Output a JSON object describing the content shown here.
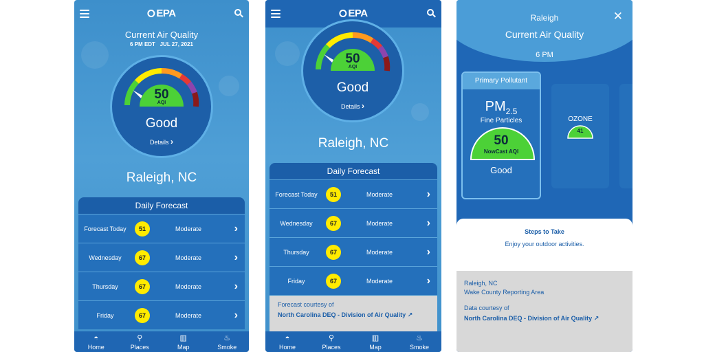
{
  "colors": {
    "primary": "#1f66b3",
    "good": "#4cd137",
    "moderate": "#ffeb00"
  },
  "nav": [
    {
      "label": "Home",
      "icon": "home-icon",
      "glyph": "◓"
    },
    {
      "label": "Places",
      "icon": "pin-icon",
      "glyph": "⚲"
    },
    {
      "label": "Map",
      "icon": "map-icon",
      "glyph": "▥"
    },
    {
      "label": "Smoke",
      "icon": "smoke-icon",
      "glyph": "♨"
    }
  ],
  "brand": "EPA",
  "screen1": {
    "header": "Current Air Quality",
    "timestamp": "6 PM EDT   JUL 27, 2021",
    "aqi": "50",
    "aqi_label": "AQI",
    "category": "Good",
    "details": "Details",
    "location": "Raleigh, NC",
    "forecast_title": "Daily Forecast",
    "forecast": [
      {
        "day": "Forecast Today",
        "aqi": "51",
        "category": "Moderate"
      },
      {
        "day": "Wednesday",
        "aqi": "67",
        "category": "Moderate"
      },
      {
        "day": "Thursday",
        "aqi": "67",
        "category": "Moderate"
      },
      {
        "day": "Friday",
        "aqi": "67",
        "category": "Moderate"
      }
    ]
  },
  "screen2": {
    "aqi": "50",
    "aqi_label": "AQI",
    "category": "Good",
    "details": "Details",
    "location": "Raleigh, NC",
    "forecast_title": "Daily Forecast",
    "forecast": [
      {
        "day": "Forecast Today",
        "aqi": "51",
        "category": "Moderate"
      },
      {
        "day": "Wednesday",
        "aqi": "67",
        "category": "Moderate"
      },
      {
        "day": "Thursday",
        "aqi": "67",
        "category": "Moderate"
      },
      {
        "day": "Friday",
        "aqi": "67",
        "category": "Moderate"
      }
    ],
    "courtesy_label": "Forecast courtesy of",
    "courtesy_source": "North Carolina DEQ - Division of Air Quality"
  },
  "screen3": {
    "city": "Raleigh",
    "header": "Current Air Quality",
    "time": "6 PM",
    "primary_label": "Primary Pollutant",
    "pollutant": "PM",
    "pollutant_sub": "2.5",
    "pollutant_name": "Fine Particles",
    "aqi": "50",
    "aqi_label": "NowCast AQI",
    "category": "Good",
    "ozone_label": "OZONE",
    "ozone_aqi": "41",
    "steps_title": "Steps to Take",
    "steps_text": "Enjoy your outdoor activities.",
    "area_city": "Raleigh, NC",
    "area_name": "Wake County Reporting Area",
    "data_courtesy": "Data courtesy of",
    "data_source": "North Carolina DEQ - Division of Air Quality"
  }
}
